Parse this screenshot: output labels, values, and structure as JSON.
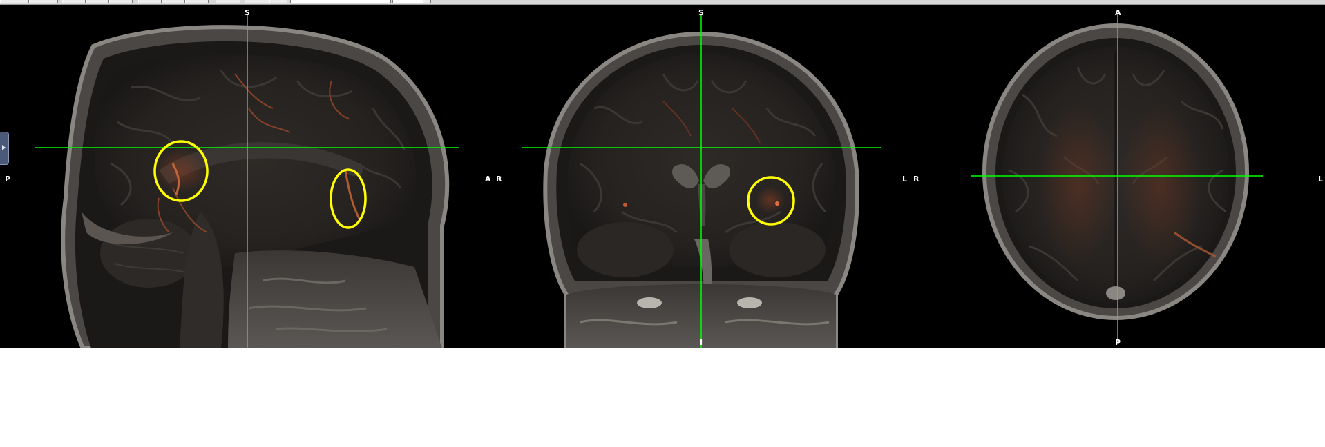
{
  "viewer": {
    "crosshair_color": "#00ff00",
    "highlight_color": "#ffff00",
    "overlay_color": "#ff6a3a",
    "panels": [
      {
        "name": "sagittal",
        "labels": {
          "top": "S",
          "left": "P",
          "right": "A",
          "bottom": ""
        }
      },
      {
        "name": "coronal",
        "labels": {
          "top": "S",
          "left": "R",
          "right": "L",
          "bottom": "I"
        }
      },
      {
        "name": "axial",
        "labels": {
          "top": "A",
          "left": "R",
          "right": "L",
          "bottom": "P"
        }
      }
    ]
  },
  "icons": {
    "side_panel": "expand-arrow-icon"
  }
}
